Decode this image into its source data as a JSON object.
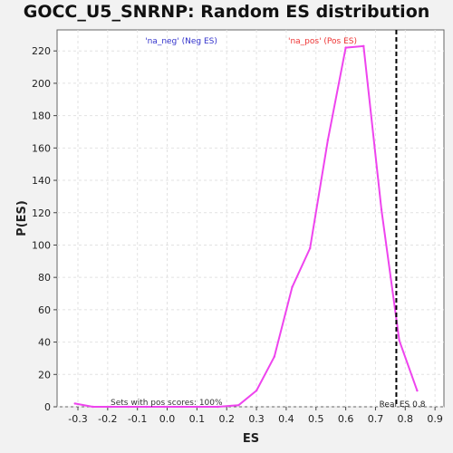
{
  "chart_data": {
    "type": "line",
    "title": "GOCC_U5_SNRNP: Random ES distribution",
    "xlabel": "ES",
    "ylabel": "P(ES)",
    "xlim": [
      -0.37,
      0.93
    ],
    "ylim": [
      0,
      233
    ],
    "x_ticks": [
      -0.3,
      -0.2,
      -0.1,
      0.0,
      0.1,
      0.2,
      0.3,
      0.4,
      0.5,
      0.6,
      0.7,
      0.8,
      0.9
    ],
    "x_tick_labels": [
      "-0.3",
      "-0.2",
      "-0.1",
      "0.0",
      "0.1",
      "0.2",
      "0.3",
      "0.4",
      "0.5",
      "0.6",
      "0.7",
      "0.8",
      "0.9"
    ],
    "y_ticks": [
      0,
      20,
      40,
      60,
      80,
      100,
      120,
      140,
      160,
      180,
      200,
      220
    ],
    "y_tick_labels": [
      "0",
      "20",
      "40",
      "60",
      "80",
      "100",
      "120",
      "140",
      "160",
      "180",
      "200",
      "220"
    ],
    "grid": true,
    "series": [
      {
        "color": "#ee44ee",
        "x": [
          -0.31,
          -0.25,
          -0.19,
          -0.13,
          -0.07,
          -0.01,
          0.05,
          0.11,
          0.17,
          0.24,
          0.3,
          0.36,
          0.42,
          0.48,
          0.54,
          0.6,
          0.66,
          0.72,
          0.78,
          0.84
        ],
        "y": [
          2,
          0,
          0,
          0,
          0,
          0,
          0,
          0,
          0,
          1,
          10,
          31,
          74,
          98,
          165,
          222,
          223,
          122,
          41,
          10
        ]
      }
    ],
    "real_es": 0.77,
    "real_es_color": "#000000",
    "annotations": {
      "neg_label": "'na_neg' (Neg ES)",
      "neg_color": "#3333cc",
      "pos_label": "'na_pos' (Pos ES)",
      "pos_color": "#ee3333",
      "pos_scores": "Sets with pos scores: 100%",
      "real_es_label": "Real ES 0.8"
    }
  }
}
